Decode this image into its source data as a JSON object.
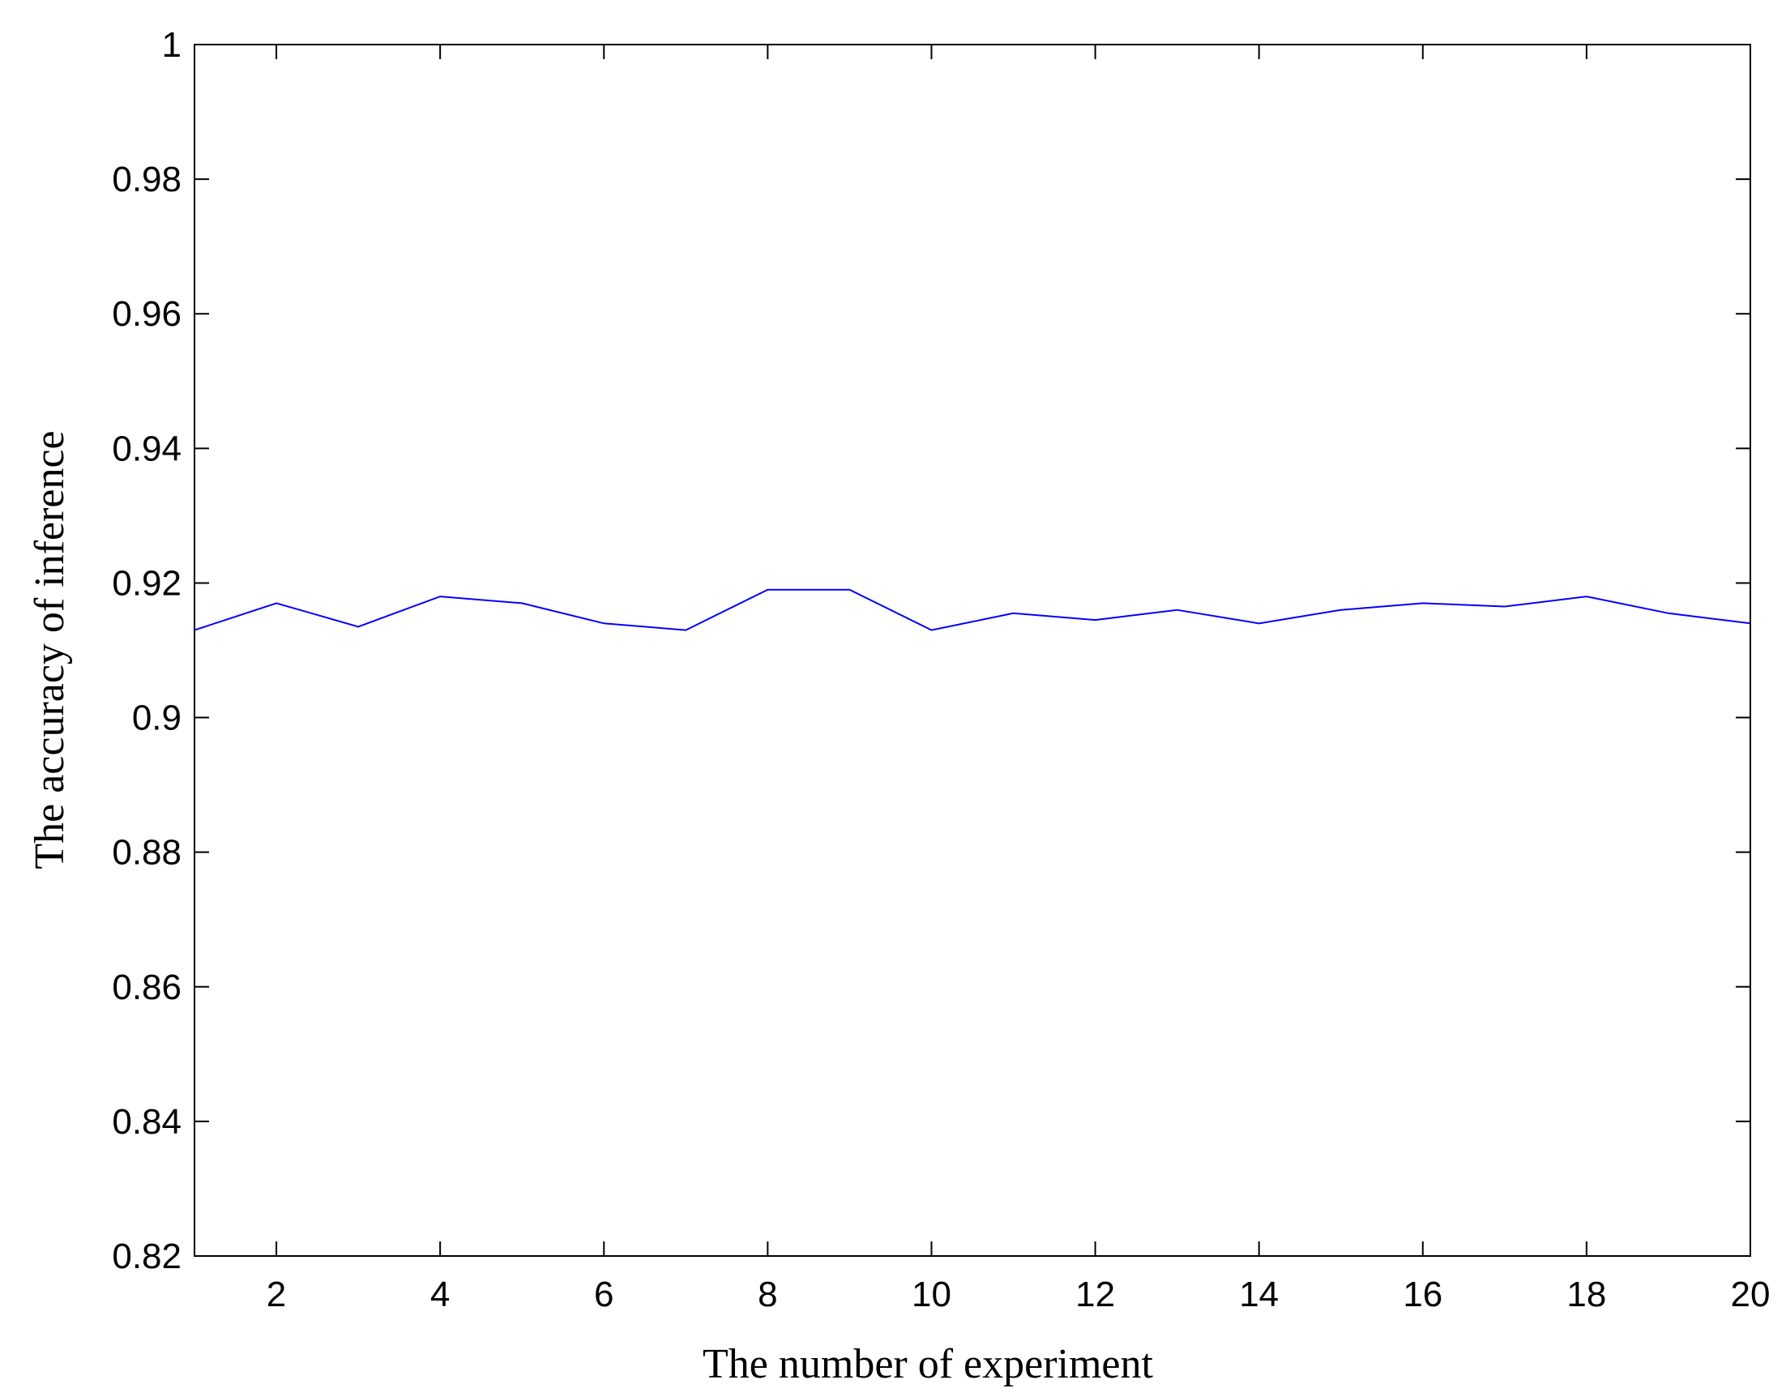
{
  "chart_data": {
    "type": "line",
    "xlabel": "The number of experiment",
    "ylabel": "The accuracy of inference",
    "xlim": [
      1,
      20
    ],
    "ylim": [
      0.82,
      1
    ],
    "xticks": [
      2,
      4,
      6,
      8,
      10,
      12,
      14,
      16,
      18,
      20
    ],
    "xtick_labels": [
      "2",
      "4",
      "6",
      "8",
      "10",
      "12",
      "14",
      "16",
      "18",
      "20"
    ],
    "yticks": [
      0.82,
      0.84,
      0.86,
      0.88,
      0.9,
      0.92,
      0.94,
      0.96,
      0.98,
      1
    ],
    "ytick_labels": [
      "0.82",
      "0.84",
      "0.86",
      "0.88",
      "0.9",
      "0.92",
      "0.94",
      "0.96",
      "0.98",
      "1"
    ],
    "grid": false,
    "series": [
      {
        "color": "#0000ff",
        "x": [
          1,
          2,
          3,
          4,
          5,
          6,
          7,
          8,
          9,
          10,
          11,
          12,
          13,
          14,
          15,
          16,
          17,
          18,
          19,
          20
        ],
        "values": [
          0.913,
          0.917,
          0.9135,
          0.918,
          0.917,
          0.914,
          0.913,
          0.919,
          0.919,
          0.913,
          0.9155,
          0.9145,
          0.916,
          0.914,
          0.916,
          0.917,
          0.9165,
          0.918,
          0.9155,
          0.914
        ]
      }
    ]
  }
}
